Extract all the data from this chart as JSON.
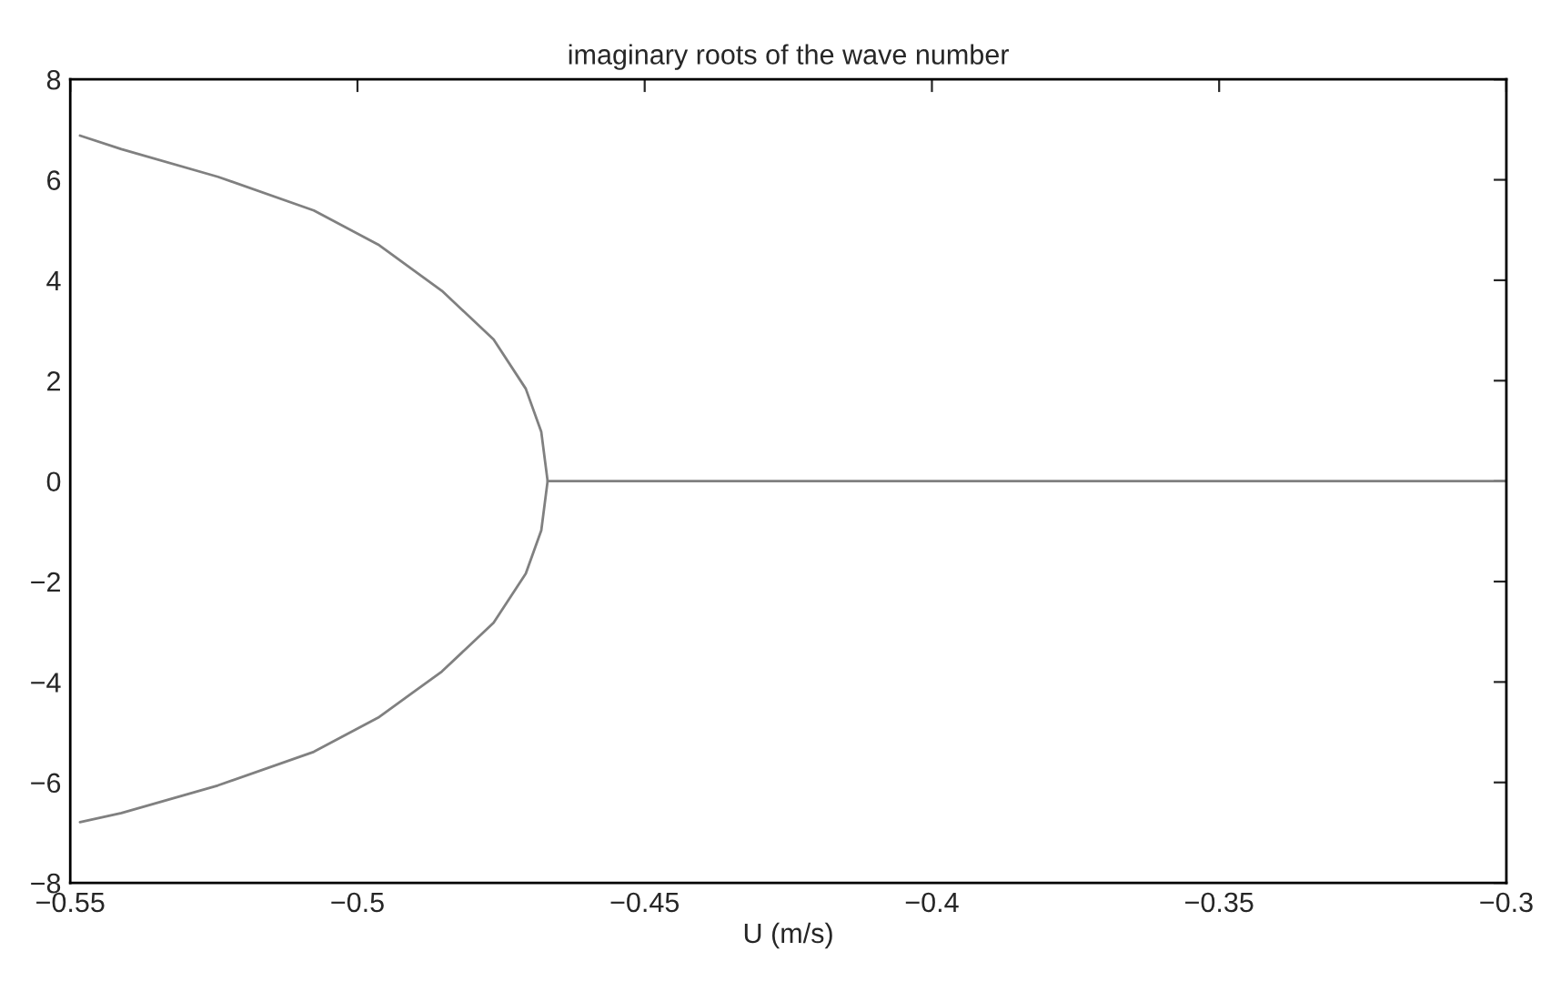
{
  "chart_data": {
    "type": "line",
    "title": "imaginary roots of the wave number",
    "xlabel": "U (m/s)",
    "series": [
      {
        "color": "#808080",
        "x": [
          -0.5483,
          -0.5411,
          -0.5243,
          -0.5076,
          -0.4964,
          -0.4853,
          -0.4763,
          -0.4707,
          -0.468,
          -0.4669,
          -0.3
        ],
        "values": [
          6.88,
          6.61,
          6.06,
          5.39,
          4.71,
          3.79,
          2.82,
          1.84,
          0.98,
          0,
          0
        ]
      },
      {
        "color": "#808080",
        "x": [
          -0.5483,
          -0.5411,
          -0.5243,
          -0.5076,
          -0.4964,
          -0.4853,
          -0.4763,
          -0.4707,
          -0.468,
          -0.4669
        ],
        "values": [
          -6.79,
          -6.61,
          -6.06,
          -5.39,
          -4.71,
          -3.79,
          -2.82,
          -1.84,
          -0.98,
          0
        ]
      }
    ],
    "xlim": [
      -0.55,
      -0.3
    ],
    "xticks": [
      {
        "value": -0.55,
        "label": "−0.55"
      },
      {
        "value": -0.5,
        "label": "−0.5"
      },
      {
        "value": -0.45,
        "label": "−0.45"
      },
      {
        "value": -0.4,
        "label": "−0.4"
      },
      {
        "value": -0.35,
        "label": "−0.35"
      },
      {
        "value": -0.3,
        "label": "−0.3"
      }
    ],
    "ylim": [
      -8,
      8
    ],
    "yticks": [
      {
        "value": -8,
        "label": "−8"
      },
      {
        "value": -6,
        "label": "−6"
      },
      {
        "value": -4,
        "label": "−4"
      },
      {
        "value": -2,
        "label": "−2"
      },
      0,
      2,
      4,
      6,
      8
    ],
    "grid": false,
    "legend": false,
    "marker": "none",
    "line_style": "solid"
  }
}
